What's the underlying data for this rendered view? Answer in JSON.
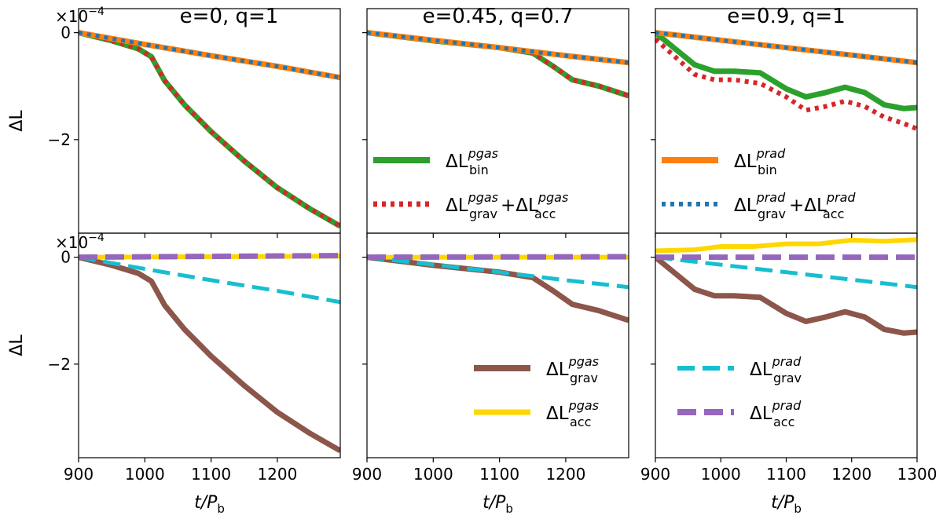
{
  "figure": {
    "y_axis_label": "ΔL",
    "x_axis_label_main": "t/P",
    "x_axis_label_sub": "b",
    "exponent_label": "×10",
    "exponent_power": "−4"
  },
  "legends": [
    {
      "panel": 1,
      "entries": [
        {
          "series": "pgas_bin",
          "main": "ΔL",
          "sup": "pgas",
          "sub": "bin"
        },
        {
          "series": "pgas_sum",
          "parts": [
            {
              "main": "ΔL",
              "sup": "pgas",
              "sub": "grav"
            },
            {
              "main": "+ΔL",
              "sup": "pgas",
              "sub": "acc"
            }
          ]
        }
      ]
    },
    {
      "panel": 2,
      "entries": [
        {
          "series": "prad_bin",
          "main": "ΔL",
          "sup": "prad",
          "sub": "bin"
        },
        {
          "series": "prad_sum",
          "parts": [
            {
              "main": "ΔL",
              "sup": "prad",
              "sub": "grav"
            },
            {
              "main": "+ΔL",
              "sup": "prad",
              "sub": "acc"
            }
          ]
        }
      ]
    },
    {
      "panel": 4,
      "entries": [
        {
          "series": "pgas_grav",
          "main": "ΔL",
          "sup": "pgas",
          "sub": "grav"
        },
        {
          "series": "pgas_acc",
          "main": "ΔL",
          "sup": "pgas",
          "sub": "acc"
        }
      ]
    },
    {
      "panel": 5,
      "entries": [
        {
          "series": "prad_grav",
          "main": "ΔL",
          "sup": "prad",
          "sub": "grav"
        },
        {
          "series": "prad_acc",
          "main": "ΔL",
          "sup": "prad",
          "sub": "acc"
        }
      ]
    }
  ],
  "chart_data": [
    {
      "type": "line",
      "panel": "top-left",
      "title": "e=0, q=1",
      "xlim": [
        900,
        1295
      ],
      "ylim": [
        -3.75,
        0.45
      ],
      "y_multiplier": "×10^-4",
      "xticks": [
        "900",
        "1000",
        "1100",
        "1200"
      ],
      "yticks": [
        "0",
        "−2"
      ],
      "show_x_tick_labels": false,
      "series": [
        {
          "key": "pgas_bin",
          "color": "#2ca02c",
          "x": [
            900,
            950,
            990,
            1010,
            1030,
            1060,
            1100,
            1150,
            1200,
            1250,
            1295
          ],
          "y": [
            0,
            -0.15,
            -0.3,
            -0.45,
            -0.9,
            -1.35,
            -1.85,
            -2.4,
            -2.9,
            -3.3,
            -3.62
          ]
        },
        {
          "key": "pgas_sum",
          "color": "#d62728",
          "x": [
            900,
            950,
            990,
            1010,
            1030,
            1060,
            1100,
            1150,
            1200,
            1250,
            1295
          ],
          "y": [
            0,
            -0.15,
            -0.3,
            -0.45,
            -0.9,
            -1.35,
            -1.85,
            -2.4,
            -2.9,
            -3.3,
            -3.62
          ]
        },
        {
          "key": "prad_bin",
          "color": "#ff7f0e",
          "x": [
            900,
            1000,
            1100,
            1200,
            1295
          ],
          "y": [
            0,
            -0.22,
            -0.43,
            -0.63,
            -0.84
          ]
        },
        {
          "key": "prad_sum",
          "color": "#1f77b4",
          "x": [
            900,
            1000,
            1100,
            1200,
            1295
          ],
          "y": [
            0,
            -0.22,
            -0.43,
            -0.63,
            -0.84
          ]
        }
      ]
    },
    {
      "type": "line",
      "panel": "top-middle",
      "title": "e=0.45, q=0.7",
      "xlim": [
        900,
        1295
      ],
      "ylim": [
        -3.75,
        0.45
      ],
      "xticks": [
        "900",
        "1000",
        "1100",
        "1200"
      ],
      "yticks": [
        "0",
        "−2"
      ],
      "show_x_tick_labels": false,
      "series": [
        {
          "key": "pgas_bin",
          "color": "#2ca02c",
          "x": [
            900,
            1000,
            1100,
            1150,
            1180,
            1210,
            1250,
            1295
          ],
          "y": [
            0,
            -0.15,
            -0.28,
            -0.38,
            -0.62,
            -0.88,
            -1.0,
            -1.18
          ]
        },
        {
          "key": "pgas_sum",
          "color": "#d62728",
          "x": [
            900,
            1000,
            1100,
            1150,
            1180,
            1210,
            1250,
            1295
          ],
          "y": [
            0,
            -0.15,
            -0.28,
            -0.38,
            -0.62,
            -0.88,
            -1.0,
            -1.18
          ]
        },
        {
          "key": "prad_bin",
          "color": "#ff7f0e",
          "x": [
            900,
            1000,
            1100,
            1200,
            1295
          ],
          "y": [
            0,
            -0.14,
            -0.28,
            -0.43,
            -0.56
          ]
        },
        {
          "key": "prad_sum",
          "color": "#1f77b4",
          "x": [
            900,
            1000,
            1100,
            1200,
            1295
          ],
          "y": [
            0,
            -0.14,
            -0.28,
            -0.43,
            -0.56
          ]
        }
      ]
    },
    {
      "type": "line",
      "panel": "top-right",
      "title": "e=0.9, q=1",
      "xlim": [
        900,
        1300
      ],
      "ylim": [
        -3.75,
        0.45
      ],
      "xticks": [
        "900",
        "1000",
        "1100",
        "1200",
        "1300"
      ],
      "yticks": [
        "0",
        "−2"
      ],
      "show_x_tick_labels": false,
      "series": [
        {
          "key": "pgas_bin",
          "color": "#2ca02c",
          "x": [
            900,
            930,
            960,
            990,
            1020,
            1060,
            1100,
            1130,
            1160,
            1190,
            1220,
            1250,
            1280,
            1300
          ],
          "y": [
            0,
            -0.3,
            -0.6,
            -0.72,
            -0.72,
            -0.75,
            -1.05,
            -1.2,
            -1.12,
            -1.02,
            -1.12,
            -1.35,
            -1.42,
            -1.4
          ]
        },
        {
          "key": "pgas_sum",
          "color": "#d62728",
          "x": [
            900,
            930,
            960,
            990,
            1020,
            1060,
            1100,
            1130,
            1160,
            1190,
            1220,
            1250,
            1280,
            1300
          ],
          "y": [
            -0.12,
            -0.45,
            -0.78,
            -0.88,
            -0.88,
            -0.95,
            -1.2,
            -1.45,
            -1.38,
            -1.28,
            -1.38,
            -1.58,
            -1.7,
            -1.8
          ]
        },
        {
          "key": "prad_bin",
          "color": "#ff7f0e",
          "x": [
            900,
            1000,
            1100,
            1200,
            1300
          ],
          "y": [
            0,
            -0.14,
            -0.28,
            -0.42,
            -0.56
          ]
        },
        {
          "key": "prad_sum",
          "color": "#1f77b4",
          "x": [
            900,
            1000,
            1100,
            1200,
            1300
          ],
          "y": [
            0,
            -0.14,
            -0.28,
            -0.42,
            -0.56
          ]
        }
      ]
    },
    {
      "type": "line",
      "panel": "bottom-left",
      "title": "",
      "xlim": [
        900,
        1295
      ],
      "ylim": [
        -3.75,
        0.45
      ],
      "y_multiplier": "×10^-4",
      "xticks": [
        "900",
        "1000",
        "1100",
        "1200"
      ],
      "yticks": [
        "0",
        "−2"
      ],
      "show_x_tick_labels": true,
      "series": [
        {
          "key": "pgas_grav",
          "color": "#8c564b",
          "x": [
            900,
            950,
            990,
            1010,
            1030,
            1060,
            1100,
            1150,
            1200,
            1250,
            1295
          ],
          "y": [
            0,
            -0.15,
            -0.3,
            -0.45,
            -0.9,
            -1.35,
            -1.85,
            -2.4,
            -2.9,
            -3.3,
            -3.62
          ]
        },
        {
          "key": "pgas_acc",
          "color": "#ffd700",
          "x": [
            900,
            1295
          ],
          "y": [
            0,
            0.02
          ]
        },
        {
          "key": "prad_grav",
          "color": "#17becf",
          "x": [
            900,
            1000,
            1100,
            1200,
            1295
          ],
          "y": [
            0,
            -0.22,
            -0.43,
            -0.63,
            -0.84
          ]
        },
        {
          "key": "prad_acc",
          "color": "#9467bd",
          "x": [
            900,
            1295
          ],
          "y": [
            0,
            0.03
          ]
        }
      ]
    },
    {
      "type": "line",
      "panel": "bottom-middle",
      "title": "",
      "xlim": [
        900,
        1295
      ],
      "ylim": [
        -3.75,
        0.45
      ],
      "xticks": [
        "900",
        "1000",
        "1100",
        "1200"
      ],
      "yticks": [
        "0",
        "−2"
      ],
      "show_x_tick_labels": true,
      "series": [
        {
          "key": "pgas_grav",
          "color": "#8c564b",
          "x": [
            900,
            1000,
            1100,
            1150,
            1180,
            1210,
            1250,
            1295
          ],
          "y": [
            0,
            -0.15,
            -0.28,
            -0.38,
            -0.62,
            -0.88,
            -1.0,
            -1.18
          ]
        },
        {
          "key": "pgas_acc",
          "color": "#ffd700",
          "x": [
            900,
            1295
          ],
          "y": [
            0,
            0.0
          ]
        },
        {
          "key": "prad_grav",
          "color": "#17becf",
          "x": [
            900,
            1000,
            1100,
            1200,
            1295
          ],
          "y": [
            0,
            -0.14,
            -0.28,
            -0.43,
            -0.56
          ]
        },
        {
          "key": "prad_acc",
          "color": "#9467bd",
          "x": [
            900,
            1295
          ],
          "y": [
            0,
            0.01
          ]
        }
      ]
    },
    {
      "type": "line",
      "panel": "bottom-right",
      "title": "",
      "xlim": [
        900,
        1300
      ],
      "ylim": [
        -3.75,
        0.45
      ],
      "xticks": [
        "900",
        "1000",
        "1100",
        "1200",
        "1300"
      ],
      "yticks": [
        "0",
        "−2"
      ],
      "show_x_tick_labels": true,
      "series": [
        {
          "key": "pgas_grav",
          "color": "#8c564b",
          "x": [
            900,
            930,
            960,
            990,
            1020,
            1060,
            1100,
            1130,
            1160,
            1190,
            1220,
            1250,
            1280,
            1300
          ],
          "y": [
            0,
            -0.3,
            -0.6,
            -0.72,
            -0.72,
            -0.75,
            -1.05,
            -1.2,
            -1.12,
            -1.02,
            -1.12,
            -1.35,
            -1.42,
            -1.4
          ]
        },
        {
          "key": "pgas_acc",
          "color": "#ffd700",
          "x": [
            900,
            960,
            1000,
            1050,
            1100,
            1150,
            1200,
            1250,
            1300
          ],
          "y": [
            0.12,
            0.14,
            0.2,
            0.2,
            0.25,
            0.25,
            0.32,
            0.3,
            0.33
          ]
        },
        {
          "key": "prad_grav",
          "color": "#17becf",
          "x": [
            900,
            1000,
            1100,
            1200,
            1300
          ],
          "y": [
            0,
            -0.14,
            -0.28,
            -0.42,
            -0.56
          ]
        },
        {
          "key": "prad_acc",
          "color": "#9467bd",
          "x": [
            900,
            1300
          ],
          "y": [
            0,
            0
          ]
        }
      ]
    }
  ]
}
